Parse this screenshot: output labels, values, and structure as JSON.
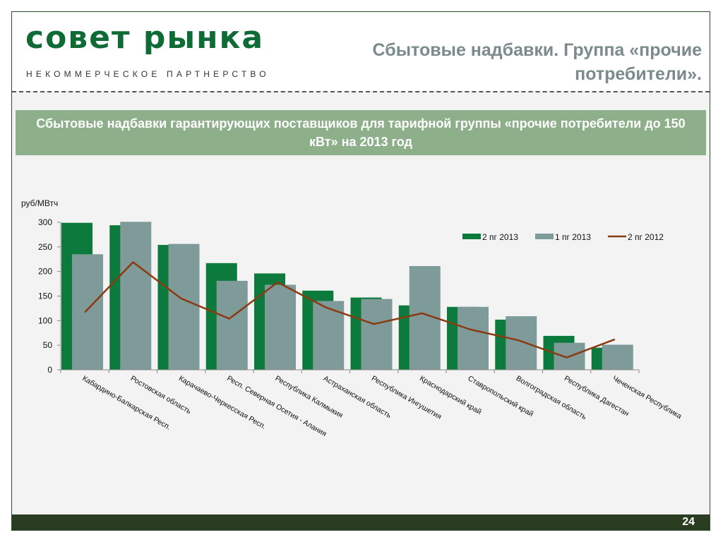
{
  "header": {
    "logo_main": "совет рынка",
    "logo_sub": "НЕКОММЕРЧЕСКОЕ ПАРТНЕРСТВО",
    "title_line1": "Сбытовые надбавки. Группа «прочие",
    "title_line2": "потребители»."
  },
  "banner": {
    "text": "Сбытовые надбавки гарантирующих поставщиков для тарифной группы «прочие потребители до 150 кВт» на 2013 год"
  },
  "footer": {
    "page_number": "24"
  },
  "colors": {
    "brand_green": "#0e6b35",
    "banner_green": "#8db08a",
    "footer_dark": "#2b3d21",
    "series_2pg2013": "#0c7a3c",
    "series_1pg2013": "#7e9b99",
    "series_2pg2012": "#8b3a12"
  },
  "chart_data": {
    "type": "bar",
    "ylabel": "руб/МВтч",
    "ylim": [
      0,
      300
    ],
    "yticks": [
      0,
      50,
      100,
      150,
      200,
      250,
      300
    ],
    "legend_position": "top-right",
    "categories": [
      "Кабардино-Балкарская Респ.",
      "Ростовская область",
      "Карачаево-Черкесская Респ.",
      "Респ. Северная Осетия - Алания",
      "Республика Калмыкия",
      "Астраханская область",
      "Республика Ингушетия",
      "Краснодарский край",
      "Ставропольский край",
      "Волгоградская область",
      "Республика Дагестан",
      "Чеченская Республика"
    ],
    "series": [
      {
        "name": "2 пг 2013",
        "type": "bar",
        "values": [
          299,
          294,
          254,
          217,
          196,
          161,
          147,
          131,
          128,
          102,
          69,
          45
        ]
      },
      {
        "name": "1 пг 2013",
        "type": "bar",
        "values": [
          235,
          301,
          256,
          181,
          173,
          140,
          144,
          211,
          128,
          109,
          55,
          51
        ]
      },
      {
        "name": "2 пг 2012",
        "type": "line",
        "values": [
          117,
          219,
          145,
          104,
          178,
          127,
          93,
          115,
          82,
          60,
          25,
          62
        ]
      }
    ]
  }
}
